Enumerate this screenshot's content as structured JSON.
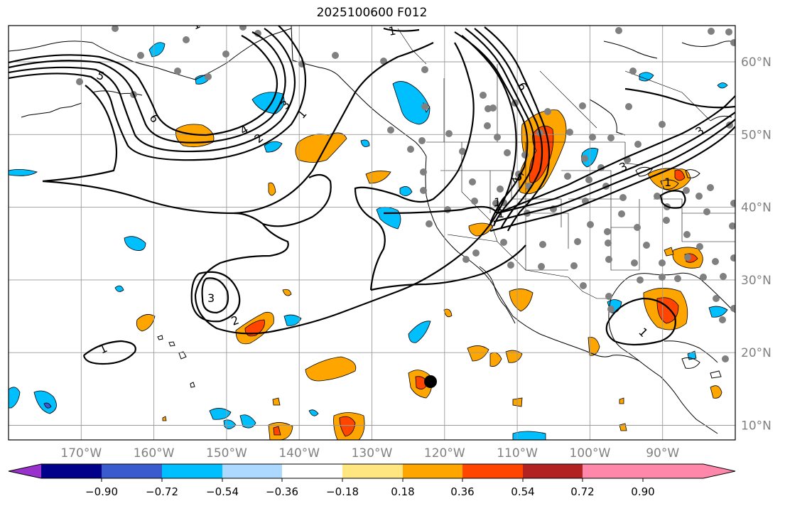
{
  "title": "2025100600 F012",
  "map": {
    "projection": "PlateCarree",
    "lon_range": [
      -180,
      -80
    ],
    "lat_range": [
      8,
      65
    ],
    "grid": true,
    "lon_ticks": [
      "170°W",
      "160°W",
      "150°W",
      "140°W",
      "130°W",
      "120°W",
      "110°W",
      "100°W",
      "90°W"
    ],
    "lat_ticks": [
      "10°N",
      "20°N",
      "30°N",
      "40°N",
      "50°N",
      "60°N"
    ]
  },
  "colorbar": {
    "tick_labels": [
      "−0.90",
      "−0.72",
      "−0.54",
      "−0.36",
      "−0.18",
      "0.18",
      "0.36",
      "0.54",
      "0.72",
      "0.90"
    ],
    "colors": [
      "#9932cc",
      "#00008b",
      "#3a5bcd",
      "#00bfff",
      "#add8ff",
      "#ffffff",
      "#ffe680",
      "#ffa500",
      "#ff4500",
      "#b22222",
      "#ff88aa"
    ]
  },
  "contour_labels": [
    "1",
    "2",
    "3",
    "4",
    "5",
    "6",
    "3",
    "2",
    "1",
    "3",
    "2",
    "1",
    "1",
    "6",
    "5",
    "3",
    "1",
    "1",
    "1",
    "2",
    "1"
  ],
  "marker": {
    "label": "",
    "lon": -122,
    "lat": 16
  }
}
